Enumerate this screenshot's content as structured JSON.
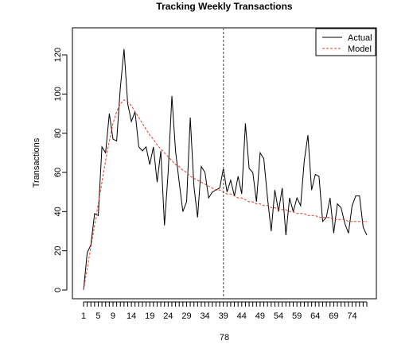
{
  "chart_data": {
    "type": "line",
    "title": "Tracking Weekly Transactions",
    "xlabel": "78",
    "ylabel": "Transactions",
    "xlim": [
      1,
      78
    ],
    "ylim": [
      0,
      130
    ],
    "yticks": [
      0,
      20,
      40,
      60,
      80,
      100,
      120
    ],
    "xtick_labels": [
      1,
      5,
      9,
      14,
      19,
      24,
      29,
      34,
      39,
      44,
      49,
      54,
      59,
      64,
      69,
      74
    ],
    "vline_x": 39,
    "legend_position": "top-right",
    "grid": false,
    "x": [
      1,
      2,
      3,
      4,
      5,
      6,
      7,
      8,
      9,
      10,
      11,
      12,
      13,
      14,
      15,
      16,
      17,
      18,
      19,
      20,
      21,
      22,
      23,
      24,
      25,
      26,
      27,
      28,
      29,
      30,
      31,
      32,
      33,
      34,
      35,
      36,
      37,
      38,
      39,
      40,
      41,
      42,
      43,
      44,
      45,
      46,
      47,
      48,
      49,
      50,
      51,
      52,
      53,
      54,
      55,
      56,
      57,
      58,
      59,
      60,
      61,
      62,
      63,
      64,
      65,
      66,
      67,
      68,
      69,
      70,
      71,
      72,
      73,
      74,
      75,
      76,
      77,
      78
    ],
    "series": [
      {
        "name": "Actual",
        "color": "#000000",
        "dash": "solid",
        "values": [
          0,
          19,
          23,
          39,
          38,
          73,
          70,
          90,
          77,
          76,
          103,
          123,
          95,
          86,
          91,
          73,
          71,
          73,
          64,
          73,
          55,
          71,
          33,
          60,
          99,
          71,
          55,
          40,
          45,
          88,
          53,
          37,
          63,
          60,
          47,
          50,
          51,
          52,
          62,
          50,
          56,
          48,
          58,
          49,
          85,
          62,
          60,
          45,
          70,
          67,
          47,
          30,
          51,
          40,
          52,
          28,
          47,
          40,
          47,
          43,
          66,
          79,
          51,
          59,
          58,
          35,
          37,
          47,
          29,
          44,
          42,
          34,
          29,
          43,
          48,
          48,
          32,
          28
        ]
      },
      {
        "name": "Model",
        "color": "#e8382e",
        "dash": "dashed",
        "values": [
          0,
          11,
          22,
          33,
          44,
          55,
          66,
          76,
          85,
          91,
          95,
          97,
          96,
          94,
          91,
          88,
          85,
          82,
          79,
          77,
          74,
          72,
          70,
          68,
          66,
          64,
          63,
          61,
          60,
          58,
          57,
          56,
          55,
          54,
          53,
          52,
          51,
          51,
          50,
          49,
          49,
          48,
          47,
          47,
          46,
          45,
          45,
          44,
          44,
          43,
          43,
          42,
          42,
          41,
          41,
          41,
          40,
          40,
          39,
          39,
          39,
          38,
          38,
          38,
          37,
          37,
          37,
          37,
          36,
          36,
          36,
          36,
          35,
          35,
          35,
          35,
          35,
          35
        ]
      }
    ]
  }
}
